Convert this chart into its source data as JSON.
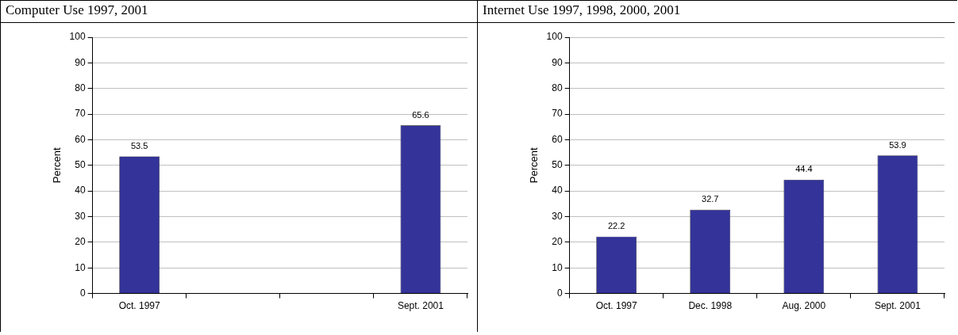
{
  "chart_data": [
    {
      "type": "bar",
      "title": "Computer Use 1997, 2001",
      "ylabel": "Percent",
      "categories": [
        "Oct. 1997",
        null,
        null,
        "Sept. 2001"
      ],
      "values": [
        53.5,
        null,
        null,
        65.6
      ],
      "color": "#333399",
      "ylim": [
        0,
        100
      ],
      "yticks": [
        0,
        10,
        20,
        30,
        40,
        50,
        60,
        70,
        80,
        90,
        100
      ],
      "grid": "y",
      "data_labels": true,
      "legend": false
    },
    {
      "type": "bar",
      "title": "Internet Use 1997, 1998, 2000, 2001",
      "ylabel": "Percent",
      "categories": [
        "Oct. 1997",
        "Dec. 1998",
        "Aug. 2000",
        "Sept. 2001"
      ],
      "values": [
        22.2,
        32.7,
        44.4,
        53.9
      ],
      "color": "#333399",
      "ylim": [
        0,
        100
      ],
      "yticks": [
        0,
        10,
        20,
        30,
        40,
        50,
        60,
        70,
        80,
        90,
        100
      ],
      "grid": "y",
      "data_labels": true,
      "legend": false
    }
  ]
}
